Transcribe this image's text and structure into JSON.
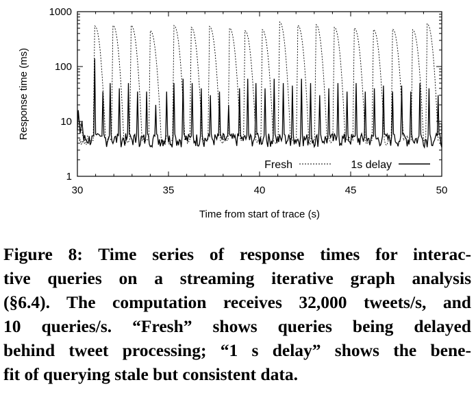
{
  "chart_data": {
    "type": "line",
    "xlabel": "Time from start of trace (s)",
    "ylabel": "Response time (ms)",
    "xlim": [
      30,
      50
    ],
    "ylim": [
      1,
      1000
    ],
    "yscale": "log",
    "x_ticks": [
      "30",
      "35",
      "40",
      "45",
      "50"
    ],
    "y_ticks": [
      "1",
      "10",
      "100",
      "1000"
    ],
    "legend_position": "bottom-right",
    "series": [
      {
        "name": "Fresh",
        "style": "dotted",
        "peaks": [
          {
            "x": 30.95,
            "y": 550
          },
          {
            "x": 31.95,
            "y": 560
          },
          {
            "x": 32.95,
            "y": 560
          },
          {
            "x": 34.0,
            "y": 450
          },
          {
            "x": 35.3,
            "y": 560
          },
          {
            "x": 36.25,
            "y": 520
          },
          {
            "x": 37.25,
            "y": 540
          },
          {
            "x": 38.35,
            "y": 500
          },
          {
            "x": 39.2,
            "y": 450
          },
          {
            "x": 40.15,
            "y": 470
          },
          {
            "x": 41.1,
            "y": 650
          },
          {
            "x": 42.1,
            "y": 560
          },
          {
            "x": 43.1,
            "y": 580
          },
          {
            "x": 44.1,
            "y": 520
          },
          {
            "x": 45.2,
            "y": 500
          },
          {
            "x": 46.25,
            "y": 470
          },
          {
            "x": 47.3,
            "y": 480
          },
          {
            "x": 48.4,
            "y": 470
          },
          {
            "x": 49.2,
            "y": 600
          }
        ],
        "baseline": 4.5
      },
      {
        "name": "1s delay",
        "style": "solid",
        "peaks": [
          {
            "x": 30.05,
            "y": 16
          },
          {
            "x": 30.95,
            "y": 140
          },
          {
            "x": 31.4,
            "y": 35
          },
          {
            "x": 31.8,
            "y": 50
          },
          {
            "x": 32.3,
            "y": 40
          },
          {
            "x": 32.8,
            "y": 50
          },
          {
            "x": 33.3,
            "y": 35
          },
          {
            "x": 33.8,
            "y": 35
          },
          {
            "x": 34.3,
            "y": 20
          },
          {
            "x": 34.9,
            "y": 35
          },
          {
            "x": 35.3,
            "y": 50
          },
          {
            "x": 35.8,
            "y": 60
          },
          {
            "x": 36.3,
            "y": 50
          },
          {
            "x": 36.8,
            "y": 40
          },
          {
            "x": 37.3,
            "y": 30
          },
          {
            "x": 37.8,
            "y": 35
          },
          {
            "x": 38.3,
            "y": 20
          },
          {
            "x": 38.9,
            "y": 40
          },
          {
            "x": 39.35,
            "y": 60
          },
          {
            "x": 39.8,
            "y": 50
          },
          {
            "x": 40.3,
            "y": 40
          },
          {
            "x": 40.8,
            "y": 60
          },
          {
            "x": 41.3,
            "y": 50
          },
          {
            "x": 41.8,
            "y": 45
          },
          {
            "x": 42.3,
            "y": 60
          },
          {
            "x": 42.8,
            "y": 50
          },
          {
            "x": 43.3,
            "y": 30
          },
          {
            "x": 43.8,
            "y": 40
          },
          {
            "x": 44.3,
            "y": 50
          },
          {
            "x": 44.8,
            "y": 35
          },
          {
            "x": 45.3,
            "y": 50
          },
          {
            "x": 45.8,
            "y": 35
          },
          {
            "x": 46.3,
            "y": 40
          },
          {
            "x": 46.8,
            "y": 45
          },
          {
            "x": 47.3,
            "y": 35
          },
          {
            "x": 47.8,
            "y": 45
          },
          {
            "x": 48.3,
            "y": 35
          },
          {
            "x": 48.8,
            "y": 50
          },
          {
            "x": 49.3,
            "y": 40
          },
          {
            "x": 49.8,
            "y": 30
          }
        ],
        "baseline": 4.5
      }
    ]
  },
  "caption": {
    "lines": [
      "Figure 8: Time series of response times for interac-",
      "tive queries on a streaming iterative graph analysis",
      "(§6.4). The computation receives 32,000 tweets/s, and",
      "10 queries/s.  “Fresh” shows queries being delayed",
      "behind tweet processing; “1 s delay” shows the bene-",
      "fit of querying stale but consistent data."
    ]
  }
}
